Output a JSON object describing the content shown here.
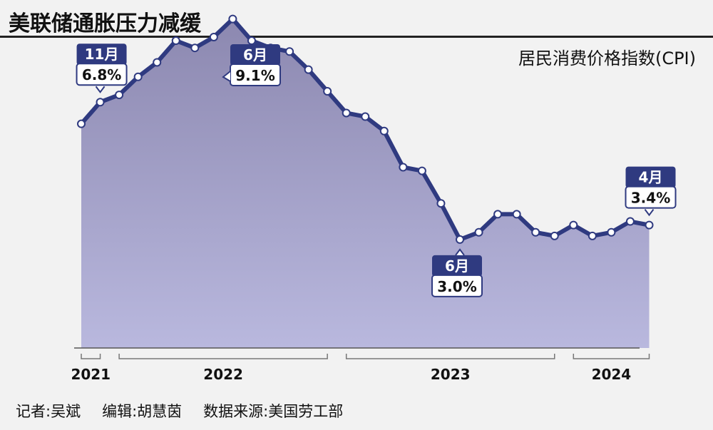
{
  "title": "美联储通胀压力减缓",
  "chart_data": {
    "type": "area",
    "subtitle": "居民消费价格指数(CPI)",
    "x": [
      "2021-10",
      "2021-11",
      "2021-12",
      "2022-01",
      "2022-02",
      "2022-03",
      "2022-04",
      "2022-05",
      "2022-06",
      "2022-07",
      "2022-08",
      "2022-09",
      "2022-10",
      "2022-11",
      "2022-12",
      "2023-01",
      "2023-02",
      "2023-03",
      "2023-04",
      "2023-05",
      "2023-06",
      "2023-07",
      "2023-08",
      "2023-09",
      "2023-10",
      "2023-11",
      "2023-12",
      "2024-01",
      "2024-02",
      "2024-03",
      "2024-04"
    ],
    "values": [
      6.2,
      6.8,
      7.0,
      7.5,
      7.9,
      8.5,
      8.3,
      8.6,
      9.1,
      8.5,
      8.3,
      8.2,
      7.7,
      7.1,
      6.5,
      6.4,
      6.0,
      5.0,
      4.9,
      4.0,
      3.0,
      3.2,
      3.7,
      3.7,
      3.2,
      3.1,
      3.4,
      3.1,
      3.2,
      3.5,
      3.4
    ],
    "ylim": [
      0,
      10
    ],
    "year_labels": [
      {
        "label": "2021",
        "from": 0,
        "to": 1
      },
      {
        "label": "2022",
        "from": 2,
        "to": 13
      },
      {
        "label": "2023",
        "from": 14,
        "to": 25
      },
      {
        "label": "2024",
        "from": 26,
        "to": 30
      }
    ],
    "callouts": [
      {
        "index": 1,
        "month": "11月",
        "value": "6.8%",
        "position": "above"
      },
      {
        "index": 8,
        "month": "6月",
        "value": "9.1%",
        "position": "above-right"
      },
      {
        "index": 20,
        "month": "6月",
        "value": "3.0%",
        "position": "below"
      },
      {
        "index": 30,
        "month": "4月",
        "value": "3.4%",
        "position": "above"
      }
    ],
    "colors": {
      "line": "#2f3a80",
      "fill_top": "#8c88b0",
      "fill_bottom": "#b9b8de",
      "callout_head": "#2f3a80",
      "marker_fill": "#ffffff"
    }
  },
  "footer": {
    "reporter": "记者:吴斌",
    "editor": "编辑:胡慧茵",
    "source": "数据来源:美国劳工部"
  }
}
